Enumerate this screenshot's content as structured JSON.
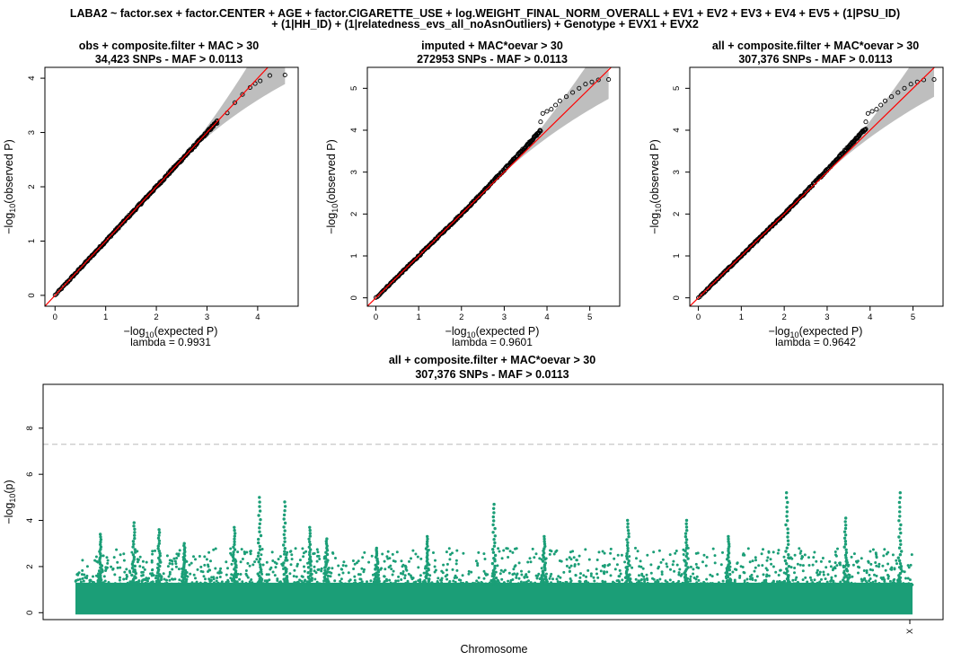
{
  "main_title": [
    "LABA2 ~ factor.sex + factor.CENTER + AGE + factor.CIGARETTE_USE + log.WEIGHT_FINAL_NORM_OVERALL + EV1 + EV2 + EV3 + EV4 + EV5 + (1|PSU_ID)",
    "+ (1|HH_ID) + (1|relatedness_evs_all_noAsnOutliers) + Genotype + EVX1 + EVX2"
  ],
  "colors": {
    "points": "#000000",
    "identity_line": "#ff0000",
    "confidence_band": "#bebebe",
    "manhattan_points": "#1b9e77",
    "threshold_line": "#c8c8c8"
  },
  "chart_data": [
    {
      "type": "scatter",
      "subtype": "qq",
      "title": "obs + composite.filter + MAC > 30",
      "subtitle": "34,423 SNPs - MAF > 0.0113",
      "xlabel": "−log10(expected P)",
      "ylabel": "−log10(observed P)",
      "footer": "lambda = 0.9931",
      "xlim": [
        -0.2,
        4.8
      ],
      "ylim": [
        -0.2,
        4.2
      ],
      "xticks": [
        0,
        1,
        2,
        3,
        4
      ],
      "yticks": [
        0,
        1,
        2,
        3,
        4
      ],
      "n_expected_max": 4.54,
      "tail_points": [
        [
          3.2,
          3.17
        ],
        [
          3.4,
          3.36
        ],
        [
          3.55,
          3.55
        ],
        [
          3.7,
          3.7
        ],
        [
          3.85,
          3.83
        ],
        [
          3.95,
          3.9
        ],
        [
          4.05,
          3.95
        ],
        [
          4.24,
          4.05
        ],
        [
          4.54,
          4.06
        ]
      ],
      "band_halfwidth_at_max": 0.7
    },
    {
      "type": "scatter",
      "subtype": "qq",
      "title": "imputed + MAC*oevar > 30",
      "subtitle": "272953 SNPs - MAF > 0.0113",
      "xlabel": "−log10(expected P)",
      "ylabel": "−log10(observed P)",
      "footer": "lambda = 0.9601",
      "xlim": [
        -0.2,
        5.7
      ],
      "ylim": [
        -0.2,
        5.5
      ],
      "xticks": [
        0,
        1,
        2,
        3,
        4,
        5
      ],
      "yticks": [
        0,
        1,
        2,
        3,
        4,
        5
      ],
      "n_expected_max": 5.44,
      "tail_points": [
        [
          3.85,
          4.2
        ],
        [
          3.9,
          4.4
        ],
        [
          4.0,
          4.45
        ],
        [
          4.1,
          4.5
        ],
        [
          4.2,
          4.6
        ],
        [
          4.3,
          4.7
        ],
        [
          4.45,
          4.8
        ],
        [
          4.6,
          4.9
        ],
        [
          4.75,
          5.0
        ],
        [
          4.9,
          5.1
        ],
        [
          5.05,
          5.15
        ],
        [
          5.2,
          5.2
        ],
        [
          5.44,
          5.21
        ]
      ],
      "band_halfwidth_at_max": 0.75
    },
    {
      "type": "scatter",
      "subtype": "qq",
      "title": "all + composite.filter + MAC*oevar > 30",
      "subtitle": "307,376 SNPs - MAF > 0.0113",
      "xlabel": "−log10(expected P)",
      "ylabel": "−log10(observed P)",
      "footer": "lambda = 0.9642",
      "xlim": [
        -0.2,
        5.7
      ],
      "ylim": [
        -0.2,
        5.5
      ],
      "xticks": [
        0,
        1,
        2,
        3,
        4,
        5
      ],
      "yticks": [
        0,
        1,
        2,
        3,
        4,
        5
      ],
      "n_expected_max": 5.49,
      "tail_points": [
        [
          3.9,
          4.2
        ],
        [
          3.95,
          4.4
        ],
        [
          4.05,
          4.45
        ],
        [
          4.15,
          4.5
        ],
        [
          4.25,
          4.6
        ],
        [
          4.35,
          4.7
        ],
        [
          4.5,
          4.8
        ],
        [
          4.65,
          4.9
        ],
        [
          4.8,
          5.0
        ],
        [
          4.95,
          5.1
        ],
        [
          5.1,
          5.15
        ],
        [
          5.25,
          5.2
        ],
        [
          5.49,
          5.21
        ]
      ],
      "band_halfwidth_at_max": 0.75
    },
    {
      "type": "scatter",
      "subtype": "manhattan",
      "title": "all + composite.filter + MAC*oevar > 30",
      "subtitle": "307,376 SNPs - MAF > 0.0113",
      "xlabel": "Chromosome",
      "ylabel": "−log10(p)",
      "ylim": [
        -0.3,
        9.9
      ],
      "yticks": [
        0,
        2,
        4,
        6,
        8
      ],
      "x_tick_labels": [
        "X"
      ],
      "significance_line": 7.3,
      "peaks": [
        {
          "pos": 0.03,
          "value": 3.4
        },
        {
          "pos": 0.07,
          "value": 3.9
        },
        {
          "pos": 0.1,
          "value": 3.6
        },
        {
          "pos": 0.13,
          "value": 3.0
        },
        {
          "pos": 0.19,
          "value": 3.7
        },
        {
          "pos": 0.22,
          "value": 5.0
        },
        {
          "pos": 0.25,
          "value": 4.8
        },
        {
          "pos": 0.28,
          "value": 3.7
        },
        {
          "pos": 0.3,
          "value": 3.2
        },
        {
          "pos": 0.36,
          "value": 2.8
        },
        {
          "pos": 0.42,
          "value": 3.3
        },
        {
          "pos": 0.5,
          "value": 4.7
        },
        {
          "pos": 0.56,
          "value": 3.3
        },
        {
          "pos": 0.66,
          "value": 4.0
        },
        {
          "pos": 0.73,
          "value": 4.0
        },
        {
          "pos": 0.78,
          "value": 3.3
        },
        {
          "pos": 0.85,
          "value": 5.2
        },
        {
          "pos": 0.92,
          "value": 4.1
        },
        {
          "pos": 0.985,
          "value": 5.2
        }
      ]
    }
  ]
}
